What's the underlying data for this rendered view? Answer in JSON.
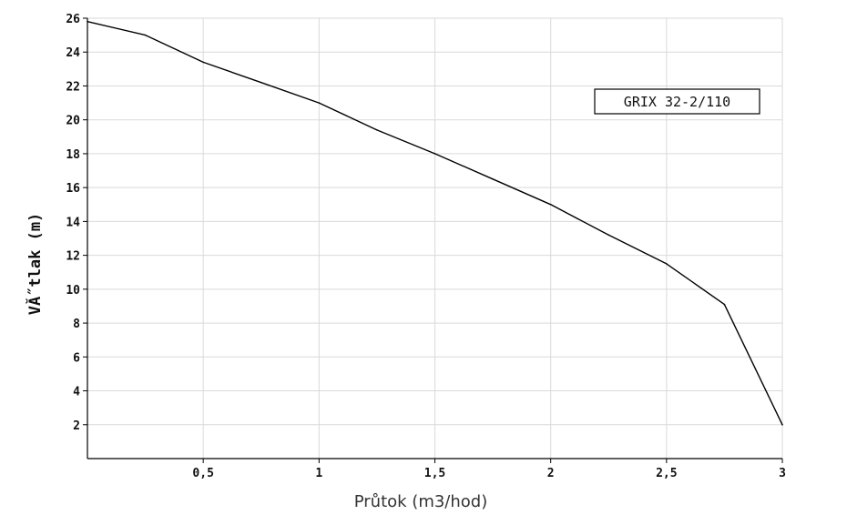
{
  "chart_data": {
    "type": "line",
    "title": "",
    "xlabel": "Průtok (m3/hod)",
    "ylabel": "VĂ˝tlak (m)",
    "xlim": [
      0,
      3
    ],
    "ylim": [
      0,
      26
    ],
    "xticks": [
      0.5,
      1,
      1.5,
      2,
      2.5,
      3
    ],
    "xtick_labels": [
      "0,5",
      "1",
      "1,5",
      "2",
      "2,5",
      "3"
    ],
    "yticks": [
      2,
      4,
      6,
      8,
      10,
      12,
      14,
      16,
      18,
      20,
      22,
      24,
      26
    ],
    "ytick_labels": [
      "2",
      "4",
      "6",
      "8",
      "10",
      "12",
      "14",
      "16",
      "18",
      "20",
      "22",
      "24",
      "26"
    ],
    "grid": true,
    "legend_position": "top-right",
    "series": [
      {
        "name": "GRIX 32-2/110",
        "color": "#000000",
        "x": [
          0,
          0.25,
          0.5,
          0.75,
          1,
          1.25,
          1.5,
          1.75,
          2,
          2.25,
          2.5,
          2.75,
          3
        ],
        "y": [
          25.8,
          25.0,
          23.4,
          22.2,
          21.0,
          19.4,
          18.0,
          16.5,
          15.0,
          13.2,
          11.5,
          9.1,
          2.0
        ]
      }
    ]
  }
}
